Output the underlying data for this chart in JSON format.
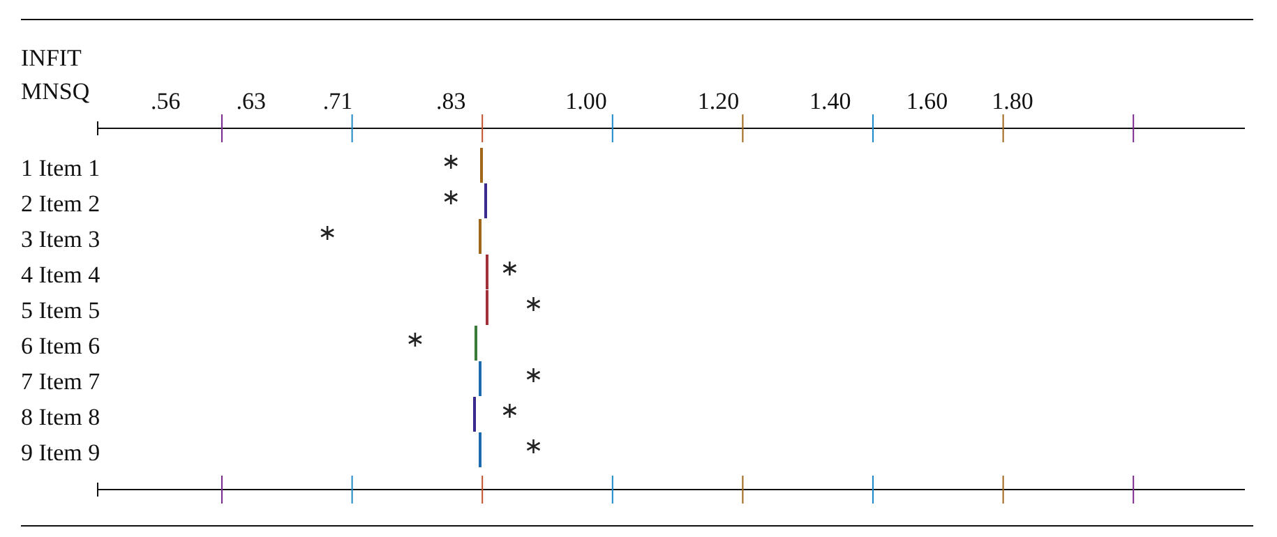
{
  "chart_data": {
    "type": "scatter",
    "orientation": "horizontal",
    "xlabel": "INFIT MNSQ",
    "categories": [
      "1 Item 1",
      "2 Item 2",
      "3 Item 3",
      "4 Item 4",
      "5 Item 5",
      "6 Item 6",
      "7 Item 7",
      "8 Item 8",
      "9 Item 9"
    ],
    "values": [
      0.83,
      0.83,
      0.7,
      0.9,
      0.93,
      0.79,
      0.93,
      0.9,
      0.93
    ],
    "color": "#222222",
    "marker": "cross",
    "log": "x",
    "grid": false,
    "xlim": [
      0.51,
      2.48
    ],
    "xticks": [
      {
        "value": 0.56,
        "label": ".56"
      },
      {
        "value": 0.63,
        "label": ".63"
      },
      {
        "value": 0.71,
        "label": ".71"
      },
      {
        "value": 0.83,
        "label": ".83"
      },
      {
        "value": 1.0,
        "label": "1.00"
      },
      {
        "value": 1.2,
        "label": "1.20"
      },
      {
        "value": 1.4,
        "label": "1.40"
      },
      {
        "value": 1.6,
        "label": "1.60"
      },
      {
        "value": 1.8,
        "label": "1.80"
      }
    ]
  }
}
